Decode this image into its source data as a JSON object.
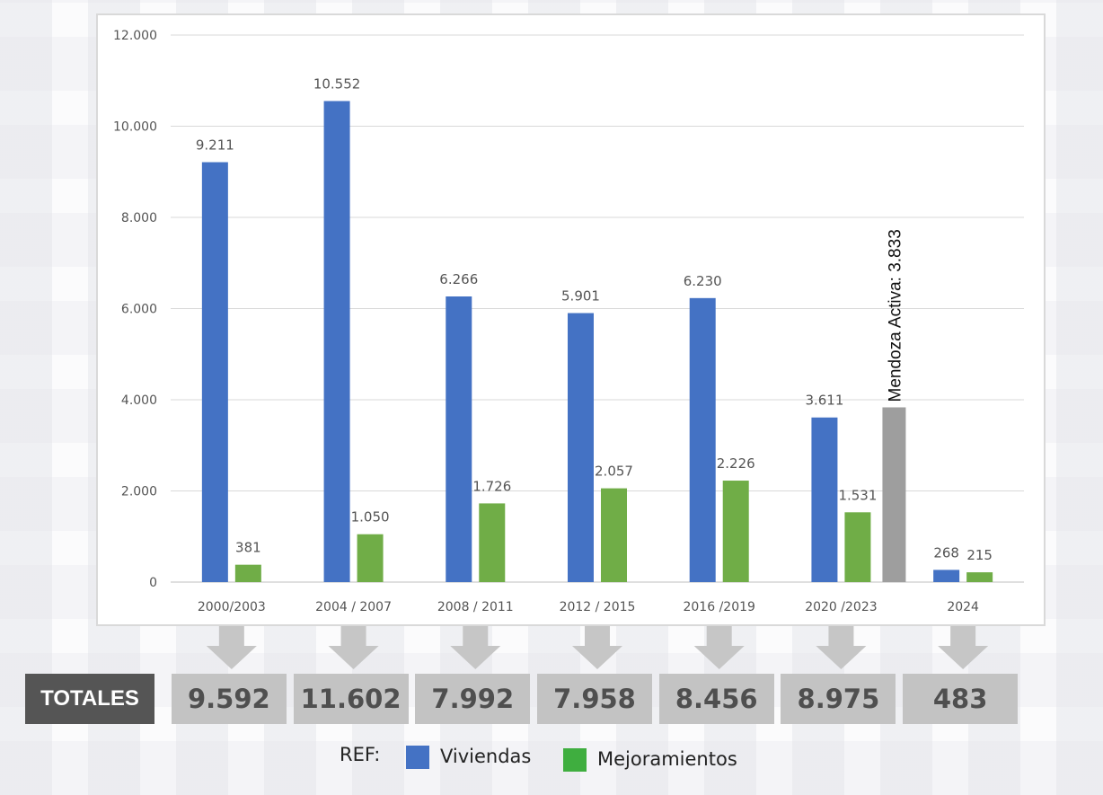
{
  "chart_data": {
    "type": "bar",
    "categories": [
      "2000/2003",
      "2004 / 2007",
      "2008 / 2011",
      "2012 / 2015",
      "2016 /2019",
      "2020 /2023",
      "2024"
    ],
    "series": [
      {
        "name": "Viviendas",
        "color": "#4472C4",
        "values": [
          9211,
          10552,
          6266,
          5901,
          6230,
          3611,
          268
        ],
        "labels": [
          "9.211",
          "10.552",
          "6.266",
          "5.901",
          "6.230",
          "3.611",
          "268"
        ]
      },
      {
        "name": "Mejoramientos",
        "color": "#70AD47",
        "values": [
          381,
          1050,
          1726,
          2057,
          2226,
          1531,
          215
        ],
        "labels": [
          "381",
          "1.050",
          "1.726",
          "2.057",
          "2.226",
          "1.531",
          "215"
        ]
      }
    ],
    "extra_bar": {
      "category": "2020 /2023",
      "value": 3833,
      "label": "Mendoza Activa: 3.833",
      "color": "#9E9E9E"
    },
    "ylim": [
      0,
      12000
    ],
    "yticks": [
      0,
      2000,
      4000,
      6000,
      8000,
      10000,
      12000
    ],
    "ytick_labels": [
      "0",
      "2.000",
      "4.000",
      "6.000",
      "8.000",
      "10.000",
      "12.000"
    ],
    "grid": true
  },
  "totals": {
    "label": "TOTALES",
    "values": [
      "9.592",
      "11.602",
      "7.992",
      "7.958",
      "8.456",
      "8.975",
      "483"
    ]
  },
  "legend": {
    "ref": "REF:",
    "items": [
      {
        "label": "Viviendas",
        "color": "#4472C4"
      },
      {
        "label": "Mejoramientos",
        "color": "#70AD47"
      }
    ]
  }
}
